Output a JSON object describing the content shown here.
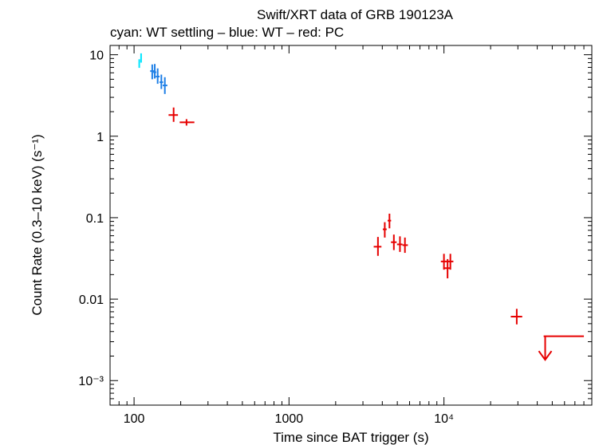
{
  "chart_data": {
    "type": "scatter",
    "title": "Swift/XRT data of GRB 190123A",
    "subtitle": "cyan: WT settling – blue: WT – red: PC",
    "xlabel": "Time since BAT trigger (s)",
    "ylabel": "Count Rate (0.3–10 keV) (s⁻¹)",
    "x_scale": "log",
    "y_scale": "log",
    "xlim": [
      70,
      90000
    ],
    "ylim": [
      0.0005,
      13
    ],
    "grid": false,
    "x_ticks": [
      {
        "value": 100,
        "label": "100"
      },
      {
        "value": 1000,
        "label": "1000"
      },
      {
        "value": 10000,
        "label": "10⁴"
      }
    ],
    "y_ticks": [
      {
        "value": 10,
        "label": "10"
      },
      {
        "value": 1,
        "label": "1"
      },
      {
        "value": 0.1,
        "label": "0.1"
      },
      {
        "value": 0.01,
        "label": "0.01"
      },
      {
        "value": 0.001,
        "label": "10⁻³"
      }
    ],
    "series": [
      {
        "color": "#00e5ff",
        "points": [
          {
            "x": 108,
            "xlo": 107,
            "xhi": 109,
            "y": 7.8,
            "ylo": 6.9,
            "yhi": 8.8
          },
          {
            "x": 111,
            "xlo": 110,
            "xhi": 112,
            "y": 9.1,
            "ylo": 8.0,
            "yhi": 10.4
          }
        ]
      },
      {
        "color": "#1e7fe6",
        "points": [
          {
            "x": 131,
            "xlo": 127,
            "xhi": 135,
            "y": 6.3,
            "ylo": 5.0,
            "yhi": 7.6
          },
          {
            "x": 136,
            "xlo": 133,
            "xhi": 139,
            "y": 6.1,
            "ylo": 5.1,
            "yhi": 7.7
          },
          {
            "x": 142,
            "xlo": 138,
            "xhi": 146,
            "y": 5.4,
            "ylo": 4.4,
            "yhi": 6.8
          },
          {
            "x": 150,
            "xlo": 146,
            "xhi": 154,
            "y": 4.6,
            "ylo": 3.8,
            "yhi": 5.7
          },
          {
            "x": 158,
            "xlo": 153,
            "xhi": 164,
            "y": 4.2,
            "ylo": 3.3,
            "yhi": 5.3
          }
        ]
      },
      {
        "color": "#e60000",
        "points": [
          {
            "x": 180,
            "xlo": 167,
            "xhi": 192,
            "y": 1.82,
            "ylo": 1.5,
            "yhi": 2.25
          },
          {
            "x": 218,
            "xlo": 197,
            "xhi": 245,
            "y": 1.48,
            "ylo": 1.35,
            "yhi": 1.62
          },
          {
            "x": 3750,
            "xlo": 3520,
            "xhi": 3950,
            "y": 0.044,
            "ylo": 0.034,
            "yhi": 0.058
          },
          {
            "x": 4150,
            "xlo": 4030,
            "xhi": 4270,
            "y": 0.072,
            "ylo": 0.057,
            "yhi": 0.088
          },
          {
            "x": 4450,
            "xlo": 4330,
            "xhi": 4560,
            "y": 0.092,
            "ylo": 0.074,
            "yhi": 0.112
          },
          {
            "x": 4750,
            "xlo": 4550,
            "xhi": 4950,
            "y": 0.05,
            "ylo": 0.04,
            "yhi": 0.062
          },
          {
            "x": 5200,
            "xlo": 4980,
            "xhi": 5400,
            "y": 0.047,
            "ylo": 0.038,
            "yhi": 0.059
          },
          {
            "x": 5600,
            "xlo": 5400,
            "xhi": 5850,
            "y": 0.046,
            "ylo": 0.037,
            "yhi": 0.057
          },
          {
            "x": 10000,
            "xlo": 9550,
            "xhi": 10450,
            "y": 0.029,
            "ylo": 0.023,
            "yhi": 0.036
          },
          {
            "x": 10550,
            "xlo": 9900,
            "xhi": 11000,
            "y": 0.024,
            "ylo": 0.018,
            "yhi": 0.031
          },
          {
            "x": 11000,
            "xlo": 10500,
            "xhi": 11500,
            "y": 0.029,
            "ylo": 0.023,
            "yhi": 0.036
          },
          {
            "x": 29500,
            "xlo": 27000,
            "xhi": 32000,
            "y": 0.0061,
            "ylo": 0.0049,
            "yhi": 0.0076
          }
        ],
        "upper_limits": [
          {
            "x": 45000,
            "xlo": 44000,
            "xhi": 80000,
            "y": 0.0035,
            "arrow_to": 0.0018
          }
        ]
      }
    ]
  }
}
